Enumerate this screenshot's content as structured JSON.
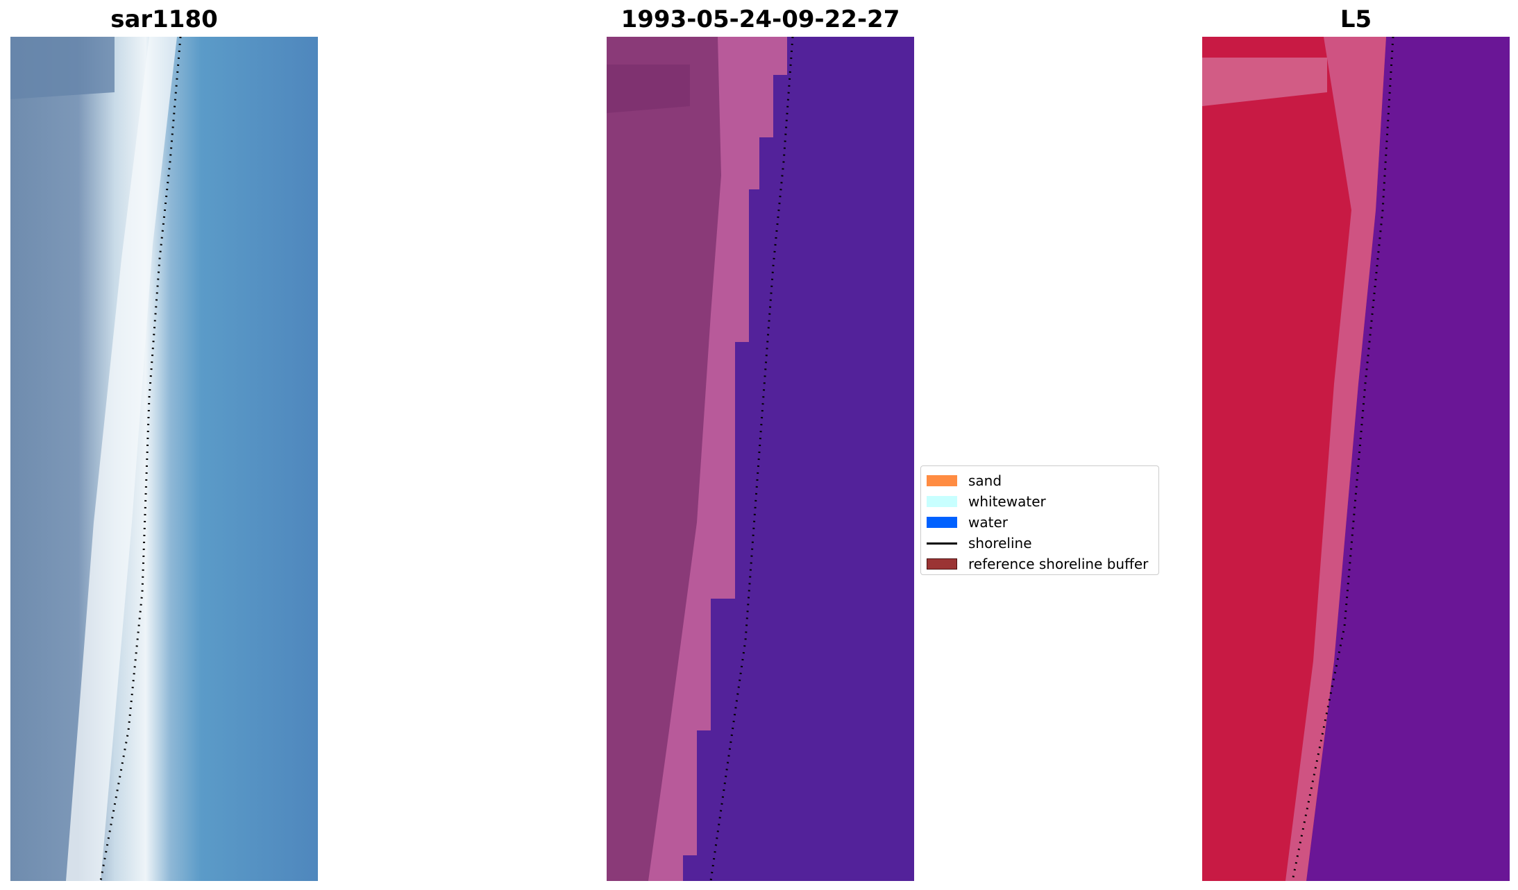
{
  "panels": [
    {
      "title": "sar1180"
    },
    {
      "title": "1993-05-24-09-22-27"
    },
    {
      "title": "L5"
    }
  ],
  "legend": {
    "items": [
      {
        "label": "sand",
        "kind": "patch",
        "color": "#ff8c42"
      },
      {
        "label": "whitewater",
        "kind": "patch",
        "color": "#c8ffff"
      },
      {
        "label": "water",
        "kind": "patch",
        "color": "#0061ff"
      },
      {
        "label": "shoreline",
        "kind": "line",
        "color": "#000000"
      },
      {
        "label": "reference shoreline buffer",
        "kind": "patch",
        "color": "#9b3434",
        "border": "#4a1010"
      }
    ]
  },
  "colors": {
    "rgb_water": "#4f8fc0",
    "rgb_beach_bright": "#eef4f8",
    "rgb_land": "#6f8cae",
    "class_water": "#53229a",
    "class_land": "#8a3a78",
    "class_beach": "#c060a0",
    "swir_land": "#c81a44",
    "swir_beach": "#cf5a8a",
    "swir_water": "#6a1696"
  }
}
